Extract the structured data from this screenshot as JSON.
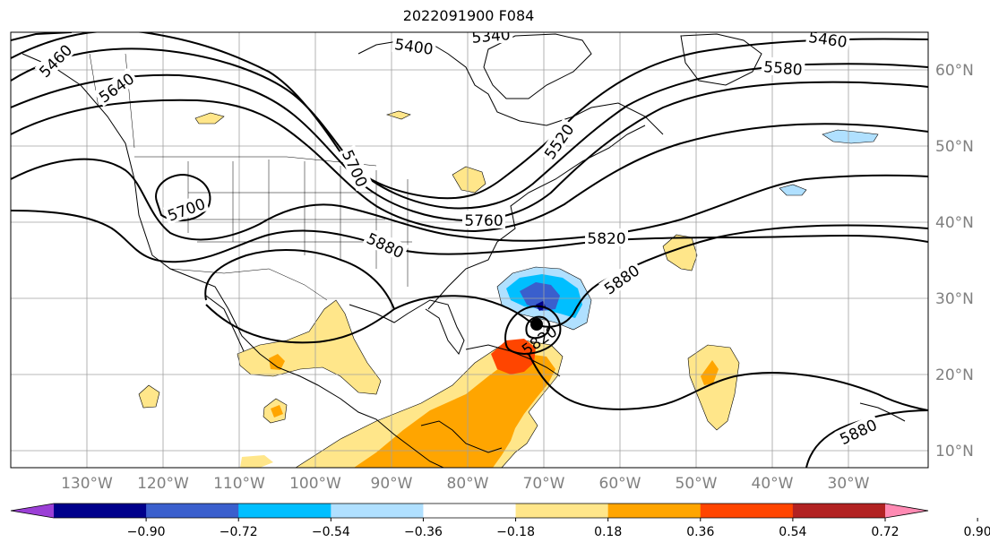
{
  "title": "2022091900 F084",
  "longitude_labels": [
    "130°W",
    "120°W",
    "110°W",
    "100°W",
    "90°W",
    "80°W",
    "70°W",
    "60°W",
    "50°W",
    "40°W",
    "30°W"
  ],
  "latitude_labels": [
    "60°N",
    "50°N",
    "40°N",
    "30°N",
    "20°N",
    "10°N"
  ],
  "contour_labels": [
    {
      "text": "5460",
      "rot": -45
    },
    {
      "text": "5400",
      "rot": 8
    },
    {
      "text": "5340",
      "rot": -5
    },
    {
      "text": "5460",
      "rot": 8
    },
    {
      "text": "5580",
      "rot": 5
    },
    {
      "text": "5640",
      "rot": -35
    },
    {
      "text": "5520",
      "rot": -55
    },
    {
      "text": "5700",
      "rot": 65
    },
    {
      "text": "5700",
      "rot": -20
    },
    {
      "text": "5760",
      "rot": 0
    },
    {
      "text": "5880",
      "rot": 25
    },
    {
      "text": "5820",
      "rot": 0
    },
    {
      "text": "5880",
      "rot": -35
    },
    {
      "text": "5820",
      "rot": -35
    },
    {
      "text": "5880",
      "rot": -25
    }
  ],
  "colorbar": {
    "ticks": [
      "−0.90",
      "−0.72",
      "−0.54",
      "−0.36",
      "−0.18",
      "0.18",
      "0.36",
      "0.54",
      "0.72",
      "0.90"
    ],
    "colors": [
      "#9b3fd6",
      "#00008b",
      "#3a5fcd",
      "#00bfff",
      "#b0e0ff",
      "#ffffff",
      "#ffe68a",
      "#ffa500",
      "#ff4500",
      "#b22222",
      "#ff8ab3"
    ]
  },
  "storm_marker": "hurricane-center-dot"
}
